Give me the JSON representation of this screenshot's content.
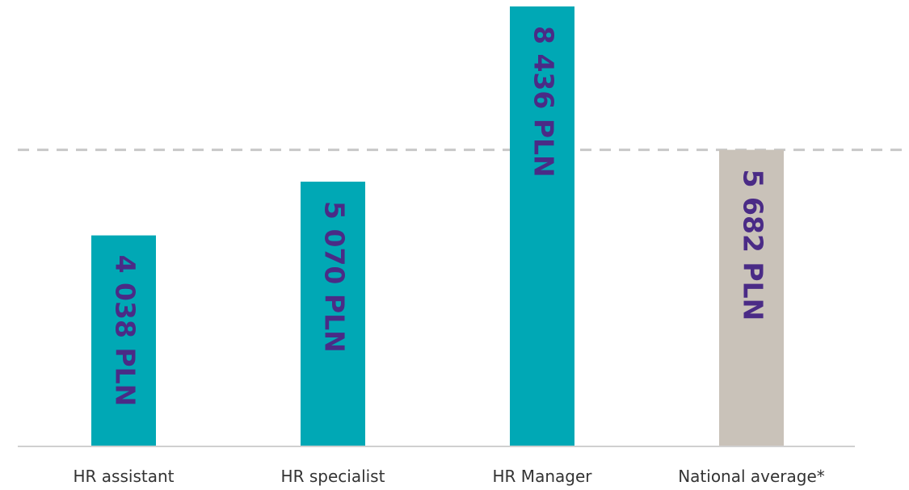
{
  "chart_data": {
    "type": "bar",
    "categories": [
      "HR assistant",
      "HR specialist",
      "HR Manager",
      "National average*"
    ],
    "values": [
      4038,
      5070,
      8436,
      5682
    ],
    "value_labels": [
      "4 038 PLN",
      "5 070 PLN",
      "8 436 PLN",
      "5 682 PLN"
    ],
    "colors": [
      "#00a8b5",
      "#00a8b5",
      "#00a8b5",
      "#c9c2b9"
    ],
    "value_label_color": "#4a2b86"
  }
}
